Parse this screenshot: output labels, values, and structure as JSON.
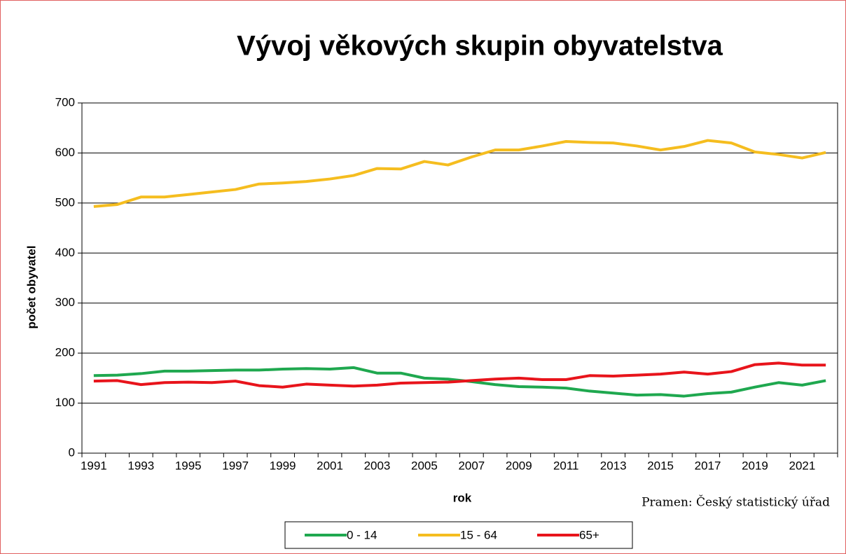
{
  "chart_data": {
    "type": "line",
    "title": "Vývoj věkových skupin obyvatelstva",
    "x_label": "rok",
    "y_label": "počet obyvatel",
    "source": "Pramen: Český statistický úřad",
    "categories": [
      "1991",
      null,
      "1993",
      null,
      "1995",
      null,
      "1997",
      null,
      "1999",
      null,
      "2001",
      null,
      "2003",
      null,
      "2005",
      null,
      "2007",
      null,
      "2009",
      null,
      "2011",
      null,
      "2013",
      null,
      "2015",
      null,
      "2017",
      null,
      "2019",
      null,
      "2021",
      null
    ],
    "series": [
      {
        "name": "0 - 14",
        "color": "#1fa84f",
        "values": [
          155,
          156,
          159,
          164,
          164,
          165,
          166,
          166,
          168,
          169,
          168,
          171,
          160,
          160,
          150,
          148,
          143,
          137,
          133,
          132,
          130,
          124,
          120,
          116,
          117,
          114,
          119,
          122,
          132,
          141,
          136,
          145
        ]
      },
      {
        "name": "15 - 64",
        "color": "#f5bd1f",
        "values": [
          493,
          497,
          512,
          512,
          517,
          522,
          527,
          538,
          540,
          543,
          548,
          555,
          569,
          568,
          583,
          576,
          592,
          606,
          606,
          614,
          623,
          621,
          620,
          614,
          606,
          613,
          625,
          620,
          602,
          597,
          590,
          601
        ]
      },
      {
        "name": "65+",
        "color": "#e8141b",
        "values": [
          144,
          145,
          137,
          141,
          142,
          141,
          144,
          135,
          132,
          138,
          136,
          134,
          136,
          140,
          141,
          142,
          145,
          148,
          150,
          147,
          147,
          155,
          154,
          156,
          158,
          162,
          158,
          163,
          177,
          180,
          176,
          176
        ]
      }
    ],
    "ylim": [
      0,
      700
    ],
    "yticks": [
      0,
      100,
      200,
      300,
      400,
      500,
      600,
      700
    ],
    "grid": true,
    "legend": "bottom"
  }
}
